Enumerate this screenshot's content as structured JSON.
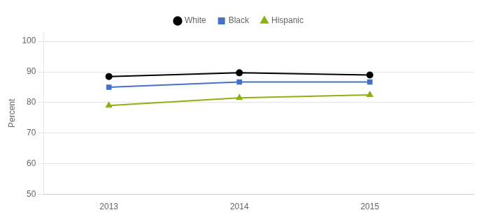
{
  "chart_data": {
    "type": "line",
    "ylabel": "Percent",
    "x": [
      2013,
      2014,
      2015
    ],
    "series": [
      {
        "name": "White",
        "color": "#000000",
        "marker": "circle",
        "values": [
          88.5,
          89.7,
          89.0
        ]
      },
      {
        "name": "Black",
        "color": "#4472C4",
        "marker": "square",
        "values": [
          85.0,
          86.7,
          86.7
        ]
      },
      {
        "name": "Hispanic",
        "color": "#8DB014",
        "marker": "triangle",
        "values": [
          79.0,
          81.5,
          82.5
        ]
      }
    ],
    "xlim": [
      2012.5,
      2015.8
    ],
    "xticks": [
      2013,
      2014,
      2015
    ],
    "ylim": [
      50,
      103
    ],
    "yticks": [
      50,
      60,
      70,
      80,
      90,
      100
    ],
    "grid": "y",
    "legend": "top"
  }
}
